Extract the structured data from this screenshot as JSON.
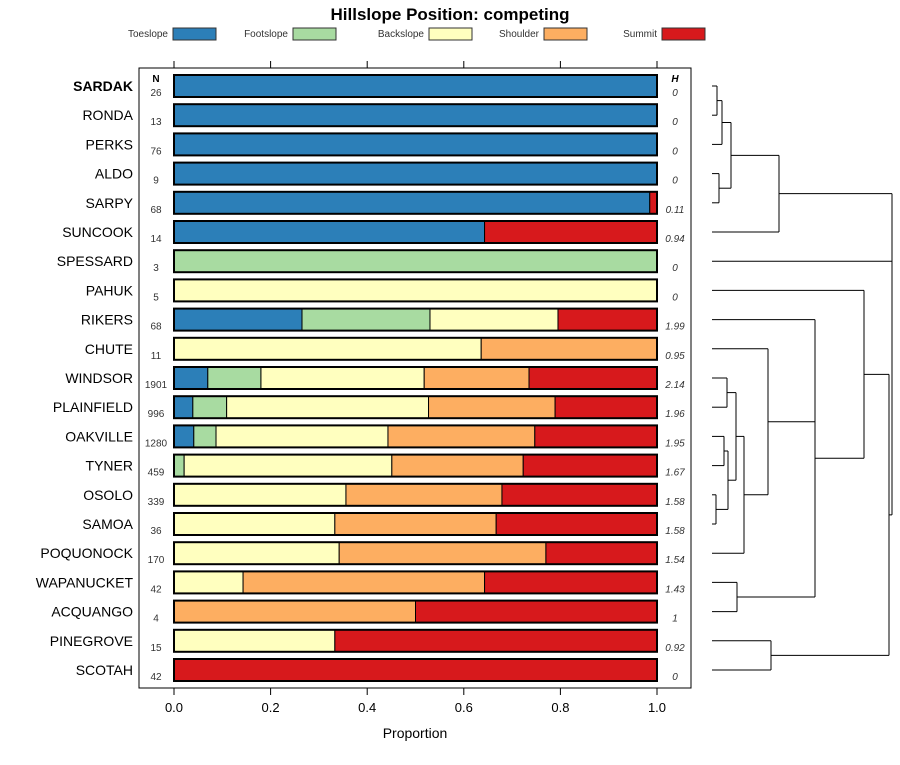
{
  "chart_data": {
    "type": "bar",
    "stacked": true,
    "orientation": "horizontal",
    "title": "Hillslope Position: competing",
    "xlabel": "Proportion",
    "xlim": [
      0,
      1
    ],
    "xticks": [
      "0.0",
      "0.2",
      "0.4",
      "0.6",
      "0.8",
      "1.0"
    ],
    "xtick_values": [
      0,
      0.2,
      0.4,
      0.6,
      0.8,
      1.0
    ],
    "legend_position": "top",
    "n_header": "N",
    "h_header": "H",
    "series": [
      {
        "name": "Toeslope",
        "color": "#2c7fb8"
      },
      {
        "name": "Footslope",
        "color": "#a8dba1"
      },
      {
        "name": "Backslope",
        "color": "#ffffbf"
      },
      {
        "name": "Shoulder",
        "color": "#fdae61"
      },
      {
        "name": "Summit",
        "color": "#d7191c"
      }
    ],
    "rows": [
      {
        "name": "SARDAK",
        "n": "26",
        "h": "0",
        "bold": true,
        "values": [
          1,
          0,
          0,
          0,
          0
        ]
      },
      {
        "name": "RONDA",
        "n": "13",
        "h": "0",
        "values": [
          1,
          0,
          0,
          0,
          0
        ]
      },
      {
        "name": "PERKS",
        "n": "76",
        "h": "0",
        "values": [
          1,
          0,
          0,
          0,
          0
        ]
      },
      {
        "name": "ALDO",
        "n": "9",
        "h": "0",
        "values": [
          1,
          0,
          0,
          0,
          0
        ]
      },
      {
        "name": "SARPY",
        "n": "68",
        "h": "0.11",
        "values": [
          0.985,
          0,
          0,
          0,
          0.015
        ]
      },
      {
        "name": "SUNCOOK",
        "n": "14",
        "h": "0.94",
        "values": [
          0.643,
          0,
          0,
          0,
          0.357
        ]
      },
      {
        "name": "SPESSARD",
        "n": "3",
        "h": "0",
        "values": [
          0,
          1,
          0,
          0,
          0
        ]
      },
      {
        "name": "PAHUK",
        "n": "5",
        "h": "0",
        "values": [
          0,
          0,
          1,
          0,
          0
        ]
      },
      {
        "name": "RIKERS",
        "n": "68",
        "h": "1.99",
        "values": [
          0.265,
          0.265,
          0.265,
          0,
          0.205
        ]
      },
      {
        "name": "CHUTE",
        "n": "11",
        "h": "0.95",
        "values": [
          0,
          0,
          0.636,
          0.364,
          0
        ]
      },
      {
        "name": "WINDSOR",
        "n": "1901",
        "h": "2.14",
        "values": [
          0.07,
          0.11,
          0.338,
          0.217,
          0.265
        ]
      },
      {
        "name": "PLAINFIELD",
        "n": "996",
        "h": "1.96",
        "values": [
          0.039,
          0.07,
          0.418,
          0.262,
          0.211
        ]
      },
      {
        "name": "OAKVILLE",
        "n": "1280",
        "h": "1.95",
        "values": [
          0.041,
          0.046,
          0.356,
          0.304,
          0.253
        ]
      },
      {
        "name": "TYNER",
        "n": "459",
        "h": "1.67",
        "values": [
          0,
          0.021,
          0.43,
          0.272,
          0.277
        ]
      },
      {
        "name": "OSOLO",
        "n": "339",
        "h": "1.58",
        "values": [
          0,
          0,
          0.356,
          0.323,
          0.321
        ]
      },
      {
        "name": "SAMOA",
        "n": "36",
        "h": "1.58",
        "values": [
          0,
          0,
          0.333,
          0.334,
          0.333
        ]
      },
      {
        "name": "POQUONOCK",
        "n": "170",
        "h": "1.54",
        "values": [
          0,
          0,
          0.342,
          0.428,
          0.23
        ]
      },
      {
        "name": "WAPANUCKET",
        "n": "42",
        "h": "1.43",
        "values": [
          0,
          0,
          0.143,
          0.5,
          0.357
        ]
      },
      {
        "name": "ACQUANGO",
        "n": "4",
        "h": "1",
        "values": [
          0,
          0,
          0,
          0.5,
          0.5
        ]
      },
      {
        "name": "PINEGROVE",
        "n": "15",
        "h": "0.92",
        "values": [
          0,
          0,
          0.333,
          0,
          0.667
        ]
      },
      {
        "name": "SCOTAH",
        "n": "42",
        "h": "0",
        "values": [
          0,
          0,
          0,
          0,
          1
        ]
      }
    ]
  }
}
